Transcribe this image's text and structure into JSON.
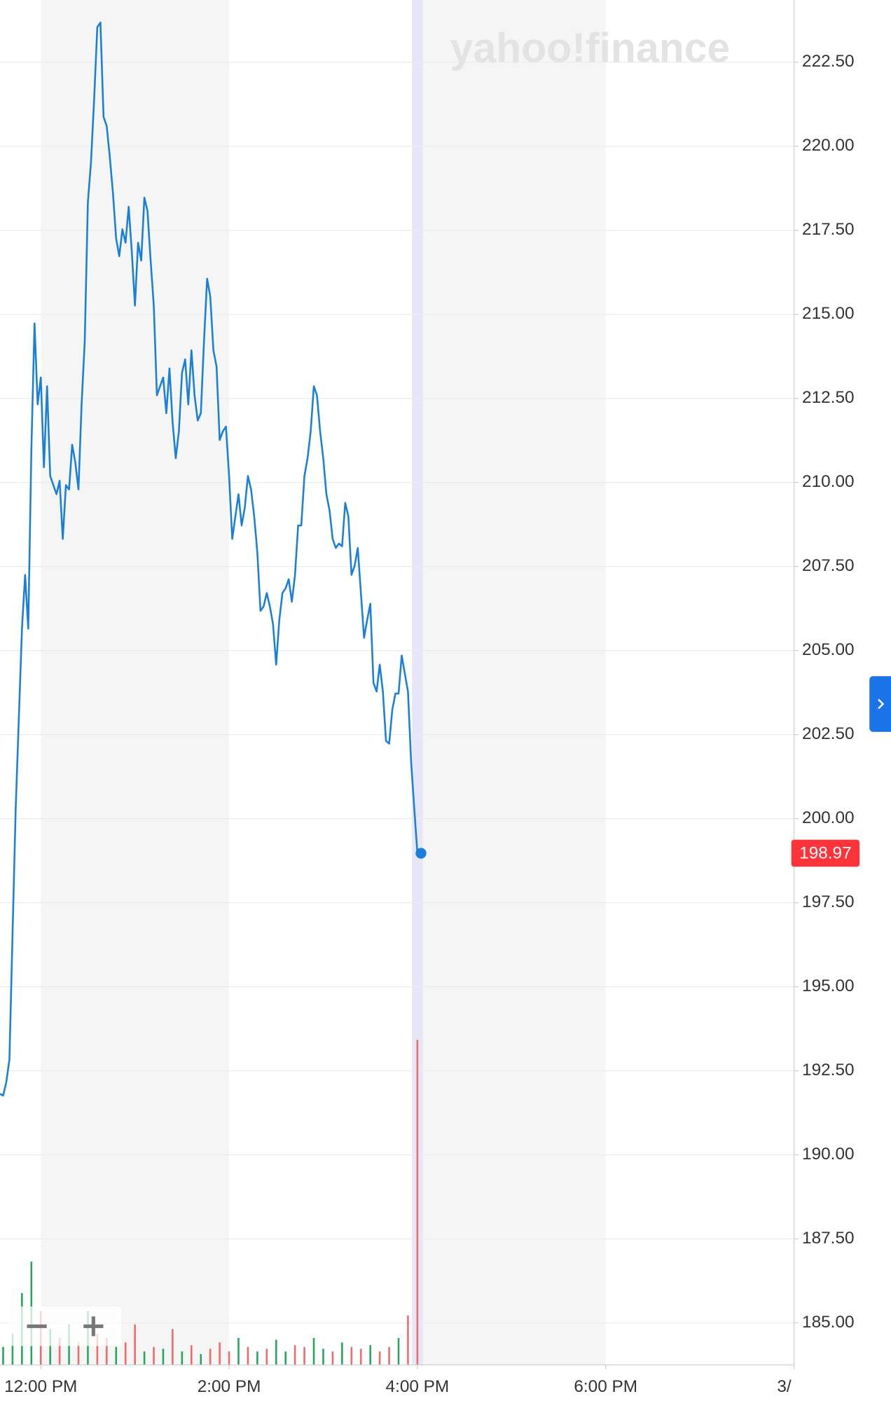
{
  "chart_data": {
    "type": "line",
    "watermark": "yahoo!finance",
    "color": "#1a7fd9",
    "last_label_color": "#ff333a",
    "x": [
      694,
      696,
      698,
      700,
      702,
      704,
      706,
      708,
      710,
      712,
      714,
      716,
      718,
      720,
      722,
      724,
      726,
      728,
      730,
      732,
      734,
      736,
      738,
      740,
      742,
      744,
      746,
      748,
      750,
      752,
      754,
      756,
      758,
      760,
      762,
      764,
      766,
      768,
      770,
      772,
      774,
      776,
      778,
      780,
      782,
      784,
      786,
      788,
      790,
      792,
      794,
      796,
      798,
      800,
      802,
      804,
      806,
      808,
      810,
      812,
      814,
      816,
      818,
      820,
      822,
      824,
      826,
      828,
      830,
      832,
      834,
      836,
      838,
      840,
      842,
      844,
      846,
      848,
      850,
      852,
      854,
      856,
      858,
      860,
      862,
      864,
      866,
      868,
      870,
      872,
      874,
      876,
      878,
      880,
      882,
      884,
      886,
      888,
      890,
      892,
      894,
      896,
      898,
      900,
      902,
      904,
      906,
      908,
      910,
      912,
      914,
      916,
      918,
      920,
      922,
      924,
      926,
      928,
      930,
      932,
      934,
      936,
      938,
      940,
      942,
      944,
      946,
      948,
      950,
      952,
      954,
      956,
      958,
      960
    ],
    "values": [
      191.81,
      191.76,
      192.16,
      192.83,
      196.57,
      200.3,
      202.98,
      205.65,
      207.25,
      205.65,
      210.99,
      214.73,
      212.32,
      213.12,
      210.45,
      212.86,
      210.19,
      209.92,
      209.65,
      210.05,
      208.32,
      209.92,
      209.79,
      211.12,
      210.59,
      209.79,
      212.32,
      214.19,
      218.33,
      219.54,
      221.4,
      223.54,
      223.68,
      220.87,
      220.6,
      219.67,
      218.6,
      217.26,
      216.73,
      217.53,
      217.13,
      218.2,
      216.86,
      215.26,
      217.13,
      216.6,
      218.47,
      218.07,
      216.6,
      215.26,
      212.59,
      212.86,
      213.12,
      212.06,
      213.39,
      211.79,
      210.72,
      211.52,
      213.26,
      213.66,
      212.32,
      213.93,
      212.59,
      211.84,
      212.06,
      214.19,
      216.06,
      215.53,
      213.93,
      213.45,
      211.26,
      211.52,
      211.66,
      210.19,
      208.32,
      208.99,
      209.65,
      208.72,
      209.25,
      210.19,
      209.79,
      208.99,
      207.92,
      206.18,
      206.31,
      206.71,
      206.31,
      205.78,
      204.58,
      205.91,
      206.71,
      206.85,
      207.12,
      206.45,
      207.25,
      208.72,
      208.72,
      210.19,
      210.72,
      211.52,
      212.86,
      212.59,
      211.52,
      210.72,
      209.65,
      209.17,
      208.32,
      208.05,
      208.18,
      208.1,
      209.39,
      208.99,
      207.25,
      207.52,
      208.05,
      206.71,
      205.38,
      205.91,
      206.39,
      204.04,
      203.78,
      204.58,
      203.78,
      202.31,
      202.23,
      203.24,
      203.72,
      203.72,
      204.85,
      204.31,
      203.78,
      201.69,
      200.3,
      198.97
    ],
    "xlim": [
      694,
      1200
    ],
    "xticks": [
      {
        "value": 720,
        "label": "12:00 PM"
      },
      {
        "value": 840,
        "label": "2:00 PM"
      },
      {
        "value": 960,
        "label": "4:00 PM"
      },
      {
        "value": 1080,
        "label": "6:00 PM"
      },
      {
        "value": 1200,
        "label": "3/"
      }
    ],
    "ylim": [
      183.75,
      224.35
    ],
    "yticks": [
      {
        "value": 185,
        "label": "185.00"
      },
      {
        "value": 187.5,
        "label": "187.50"
      },
      {
        "value": 190,
        "label": "190.00"
      },
      {
        "value": 192.5,
        "label": "192.50"
      },
      {
        "value": 195,
        "label": "195.00"
      },
      {
        "value": 197.5,
        "label": "197.50"
      },
      {
        "value": 200,
        "label": "200.00"
      },
      {
        "value": 202.5,
        "label": "202.50"
      },
      {
        "value": 205,
        "label": "205.00"
      },
      {
        "value": 207.5,
        "label": "207.50"
      },
      {
        "value": 210,
        "label": "210.00"
      },
      {
        "value": 212.5,
        "label": "212.50"
      },
      {
        "value": 215,
        "label": "215.00"
      },
      {
        "value": 217.5,
        "label": "217.50"
      },
      {
        "value": 220,
        "label": "220.00"
      },
      {
        "value": 222.5,
        "label": "222.50"
      }
    ],
    "grid": true,
    "volume": {
      "x": [
        696,
        702,
        708,
        714,
        720,
        726,
        732,
        738,
        744,
        750,
        756,
        762,
        768,
        774,
        780,
        786,
        792,
        798,
        804,
        810,
        816,
        822,
        828,
        834,
        840,
        846,
        852,
        858,
        864,
        870,
        876,
        882,
        888,
        894,
        900,
        906,
        912,
        918,
        924,
        930,
        936,
        942,
        948,
        954,
        960
      ],
      "values": [
        20,
        35,
        80,
        115,
        60,
        40,
        30,
        45,
        25,
        60,
        35,
        30,
        20,
        25,
        45,
        15,
        20,
        18,
        40,
        15,
        22,
        12,
        18,
        25,
        15,
        30,
        20,
        15,
        18,
        28,
        15,
        22,
        20,
        30,
        18,
        15,
        25,
        20,
        18,
        22,
        15,
        20,
        30,
        55,
        362
      ],
      "colors": [
        "#26a65b",
        "#26a65b",
        "#26a65b",
        "#26a65b",
        "#f06a6a",
        "#26a65b",
        "#f06a6a",
        "#26a65b",
        "#f06a6a",
        "#26a65b",
        "#f06a6a",
        "#f06a6a",
        "#26a65b",
        "#f06a6a",
        "#f06a6a",
        "#26a65b",
        "#f06a6a",
        "#26a65b",
        "#f06a6a",
        "#26a65b",
        "#f06a6a",
        "#26a65b",
        "#f06a6a",
        "#f06a6a",
        "#f06a6a",
        "#26a65b",
        "#f06a6a",
        "#26a65b",
        "#f06a6a",
        "#26a65b",
        "#26a65b",
        "#f06a6a",
        "#f06a6a",
        "#26a65b",
        "#26a65b",
        "#f06a6a",
        "#26a65b",
        "#f06a6a",
        "#f06a6a",
        "#26a65b",
        "#f06a6a",
        "#f06a6a",
        "#26a65b",
        "#f06a6a",
        "#f06a6a"
      ],
      "vlim": [
        0,
        1520
      ]
    }
  }
}
